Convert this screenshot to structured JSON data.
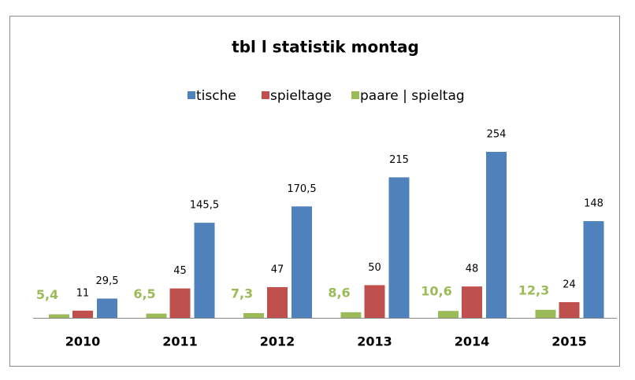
{
  "chart_data": {
    "type": "bar",
    "title": "tbl l statistik montag",
    "categories": [
      "2010",
      "2011",
      "2012",
      "2013",
      "2014",
      "2015"
    ],
    "series": [
      {
        "name": "paare | spieltag",
        "color": "#9bbb59",
        "values": [
          5.4,
          6.5,
          7.3,
          8.6,
          10.6,
          12.3
        ],
        "value_labels": [
          "5,4",
          "6,5",
          "7,3",
          "8,6",
          "10,6",
          "12,3"
        ]
      },
      {
        "name": "spieltage",
        "color": "#c0504d",
        "values": [
          11,
          45,
          47,
          50,
          48,
          24
        ]
      },
      {
        "name": "tische",
        "color": "#4f81bd",
        "values": [
          29.5,
          145.5,
          170.5,
          215,
          254,
          148
        ],
        "value_labels": [
          "29,5",
          "145,5",
          "170,5",
          "215",
          "254",
          "148"
        ]
      }
    ],
    "legend_order": [
      "tische",
      "spieltage",
      "paare | spieltag"
    ]
  }
}
